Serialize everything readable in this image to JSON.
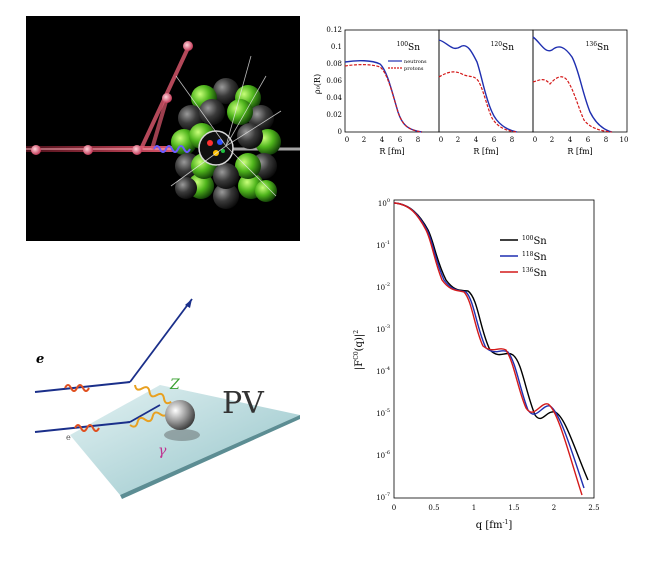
{
  "density_plots": {
    "ylabel": "ρ₀(R)",
    "yticks": [
      "0",
      "0.02",
      "0.04",
      "0.06",
      "0.08",
      "0.1",
      "0.12"
    ],
    "panels": [
      {
        "isotope_mass": "100",
        "isotope_symbol": "Sn",
        "xlabel": "R [fm]",
        "xticks": [
          "0",
          "2",
          "4",
          "6",
          "8"
        ],
        "legend": {
          "neutrons": "neutrons",
          "protons": "protons"
        }
      },
      {
        "isotope_mass": "120",
        "isotope_symbol": "Sn",
        "xlabel": "R [fm]",
        "xticks": [
          "0",
          "2",
          "4",
          "6",
          "8"
        ]
      },
      {
        "isotope_mass": "136",
        "isotope_symbol": "Sn",
        "xlabel": "R [fm]",
        "xticks": [
          "0",
          "2",
          "4",
          "6",
          "8",
          "10"
        ]
      }
    ]
  },
  "form_factor_plot": {
    "ylabel_main": "|F",
    "ylabel_sup": "C0",
    "ylabel_end": "(q)|",
    "ylabel_pow": "2",
    "xlabel_main": "q [fm",
    "xlabel_sup": "-1",
    "xlabel_end": "]",
    "xticks": [
      "0",
      "0.5",
      "1",
      "1.5",
      "2",
      "2.5"
    ],
    "yticks_exp": [
      "0",
      "-1",
      "-2",
      "-3",
      "-4",
      "-5",
      "-6",
      "-7"
    ],
    "legend": [
      {
        "mass": "100",
        "symbol": "Sn",
        "color": "#000000"
      },
      {
        "mass": "118",
        "symbol": "Sn",
        "color": "#1f2fb0"
      },
      {
        "mass": "136",
        "symbol": "Sn",
        "color": "#d41a1a"
      }
    ]
  },
  "pv_diagram": {
    "electron_label": "e",
    "plane_label": "PV",
    "z_label": "Z",
    "gamma_label": "γ",
    "e2_label": "e"
  },
  "colors": {
    "neutron": "#1f2fb0",
    "proton": "#d41a1a",
    "plane": "#a9d3d6"
  }
}
